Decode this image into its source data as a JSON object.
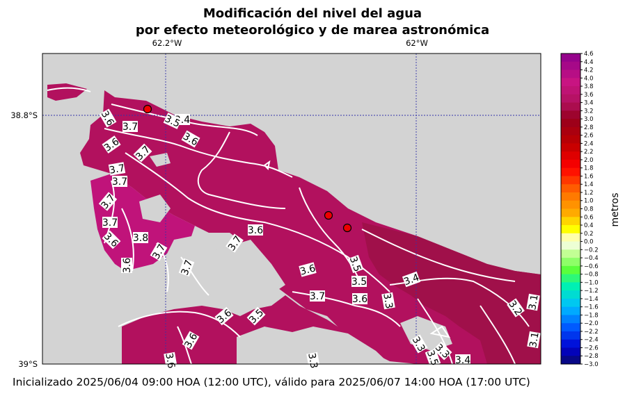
{
  "chart_data": {
    "type": "heatmap",
    "title_line1": "Modificación del nivel del agua",
    "title_line2": "por efecto meteorológico y de marea astronómica",
    "lon_ticks": [
      "62.2°W",
      "62°W"
    ],
    "lat_ticks": [
      "38.8°S",
      "39°S"
    ],
    "colorbar_label": "metros",
    "colorbar_range": [
      -3.0,
      4.6
    ],
    "colorbar_step": 0.2,
    "colorbar_ticks": [
      "4.6",
      "4.4",
      "4.2",
      "4.0",
      "3.8",
      "3.6",
      "3.4",
      "3.2",
      "3.0",
      "2.8",
      "2.6",
      "2.4",
      "2.2",
      "2.0",
      "1.8",
      "1.6",
      "1.4",
      "1.2",
      "1.0",
      "0.8",
      "0.6",
      "0.4",
      "0.2",
      "0.0",
      "−0.2",
      "−0.4",
      "−0.6",
      "−0.8",
      "−1.0",
      "−1.2",
      "−1.4",
      "−1.6",
      "−1.8",
      "−2.0",
      "−2.2",
      "−2.4",
      "−2.6",
      "−2.8",
      "−3.0"
    ],
    "contour_labels": [
      "3.4",
      "3.5",
      "3.6",
      "3.7",
      "3.6",
      "3.6",
      "3.7",
      "3.7",
      "3.7",
      "3.7",
      "3.7",
      "3.6",
      "3.8",
      "3.6",
      "3.7",
      "3.7",
      "3.7",
      "3.6",
      "3.5",
      "3.6",
      "3.5",
      "3.7",
      "3.6",
      "3.3",
      "3.4",
      "3.2",
      "3.1",
      "3.1",
      "3.6",
      "3.5",
      "3.6",
      "3.3",
      "3.3",
      "3.4",
      "3.5",
      "3.3",
      "3.6"
    ],
    "stations": 3,
    "grid": "dotted",
    "footer": "Inicializado 2025/06/04 09:00 HOA (12:00 UTC), válido para 2025/06/07 14:00 HOA (17:00 UTC)"
  }
}
